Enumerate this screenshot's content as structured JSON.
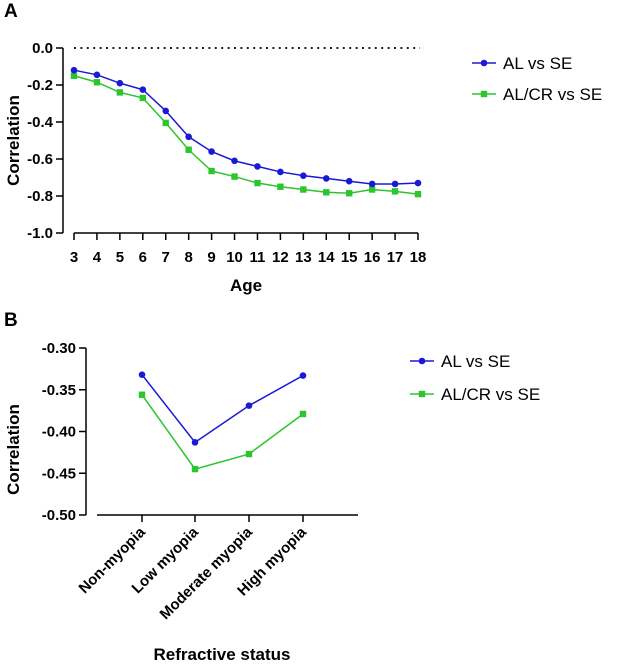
{
  "chart_data": [
    {
      "panel_label": "A",
      "type": "line",
      "title": "",
      "xlabel": "Age",
      "ylabel": "Correlation",
      "categories": [
        "3",
        "4",
        "5",
        "6",
        "7",
        "8",
        "9",
        "10",
        "11",
        "12",
        "13",
        "14",
        "15",
        "16",
        "17",
        "18"
      ],
      "x": [
        3,
        4,
        5,
        6,
        7,
        8,
        9,
        10,
        11,
        12,
        13,
        14,
        15,
        16,
        17,
        18
      ],
      "xlim": [
        3,
        18
      ],
      "ylim": [
        -1.0,
        0.0
      ],
      "yticks": [
        "0.0",
        "-0.2",
        "-0.4",
        "-0.6",
        "-0.8",
        "-1.0"
      ],
      "ytick_values": [
        0.0,
        -0.2,
        -0.4,
        -0.6,
        -0.8,
        -1.0
      ],
      "reference_line": {
        "y": 0.0,
        "style": "dotted"
      },
      "legend_position": "top-right",
      "series": [
        {
          "name": "AL vs SE",
          "color": "#1a1ad6",
          "marker": "circle",
          "values": [
            -0.12,
            -0.145,
            -0.19,
            -0.225,
            -0.34,
            -0.48,
            -0.56,
            -0.61,
            -0.64,
            -0.67,
            -0.69,
            -0.705,
            -0.72,
            -0.735,
            -0.735,
            -0.73
          ]
        },
        {
          "name": "AL/CR vs SE",
          "color": "#2dc52d",
          "marker": "square",
          "values": [
            -0.15,
            -0.185,
            -0.24,
            -0.27,
            -0.405,
            -0.55,
            -0.665,
            -0.695,
            -0.73,
            -0.75,
            -0.765,
            -0.78,
            -0.785,
            -0.765,
            -0.775,
            -0.79
          ]
        }
      ]
    },
    {
      "panel_label": "B",
      "type": "line",
      "title": "",
      "xlabel": "Refractive status",
      "ylabel": "Correlation",
      "categories": [
        "Non-myopia",
        "Low myopia",
        "Moderate myopia",
        "High myopia"
      ],
      "ylim": [
        -0.5,
        -0.3
      ],
      "yticks": [
        "-0.30",
        "-0.35",
        "-0.40",
        "-0.45",
        "-0.50"
      ],
      "ytick_values": [
        -0.3,
        -0.35,
        -0.4,
        -0.45,
        -0.5
      ],
      "legend_position": "top-right",
      "series": [
        {
          "name": "AL vs SE",
          "color": "#1a1ad6",
          "marker": "circle",
          "values": [
            -0.332,
            -0.413,
            -0.369,
            -0.333
          ]
        },
        {
          "name": "AL/CR vs SE",
          "color": "#2dc52d",
          "marker": "square",
          "values": [
            -0.356,
            -0.445,
            -0.427,
            -0.379
          ]
        }
      ]
    }
  ]
}
